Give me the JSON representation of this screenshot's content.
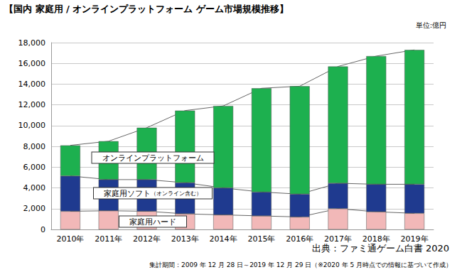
{
  "chart_data": {
    "type": "bar",
    "title": "【国内 家庭用 / オンラインプラットフォーム ゲーム市場規模推移】",
    "annotations": [
      "単位:億円",
      "出典：ファミ通ゲーム白書 2020",
      "集計期間：2009 年 12 月 28 日～2019 年 12 月 29 日（※2020 年 5 月時点での情報に基づいて作成）"
    ],
    "categories": [
      "2010年",
      "2011年",
      "2012年",
      "2013年",
      "2014年",
      "2015年",
      "2016年",
      "2017年",
      "2018年",
      "2019年"
    ],
    "series": [
      {
        "name": "家庭用ハード",
        "color": "#f2b8b8",
        "values": [
          1750,
          1800,
          1750,
          1500,
          1400,
          1300,
          1200,
          2000,
          1700,
          1550
        ]
      },
      {
        "name": "家庭用ソフト（オンライン含む）",
        "color": "#1f3a8f",
        "values": [
          3400,
          3000,
          3050,
          3000,
          2600,
          2300,
          2200,
          2450,
          2650,
          2800
        ]
      },
      {
        "name": "オンラインプラットフォーム",
        "color": "#1db04f",
        "values": [
          2950,
          3700,
          5000,
          6950,
          7900,
          10000,
          10400,
          11250,
          12350,
          12950
        ]
      }
    ],
    "stacked": true,
    "grid": true,
    "ylim": [
      0,
      18000
    ],
    "yticks": [
      0,
      {
        "value": 2000,
        "label": "2,000"
      },
      {
        "value": 4000,
        "label": "4,000"
      },
      {
        "value": 6000,
        "label": "6,000"
      },
      {
        "value": 8000,
        "label": "8,000"
      },
      {
        "value": 10000,
        "label": "10,000"
      },
      {
        "value": 12000,
        "label": "12,000"
      },
      {
        "value": 14000,
        "label": "14,000"
      },
      {
        "value": 16000,
        "label": "16,000"
      },
      {
        "value": 18000,
        "label": "18,000"
      }
    ]
  }
}
